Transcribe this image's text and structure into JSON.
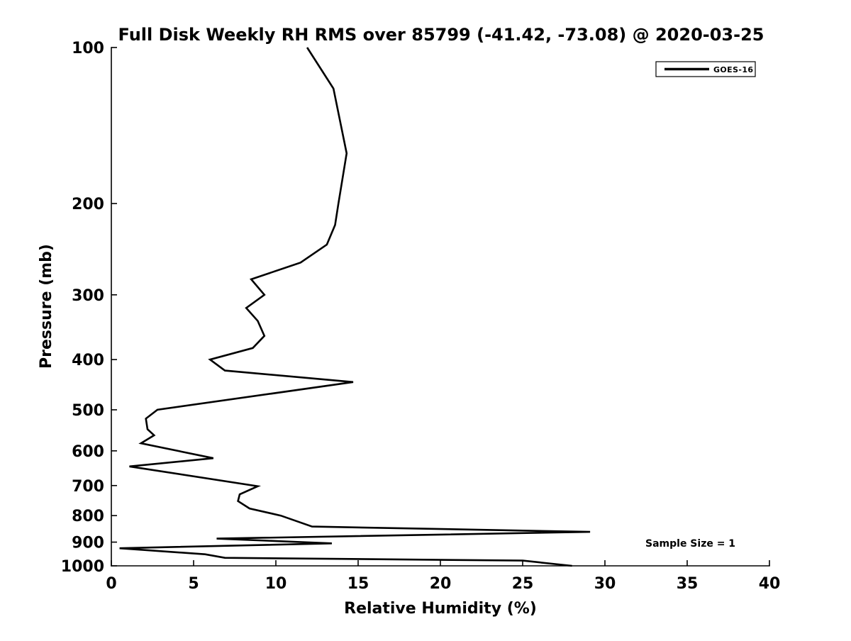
{
  "chart_data": {
    "type": "line",
    "title": "Full Disk Weekly RH RMS over 85799 (-41.42, -73.08) @ 2020-03-25",
    "xlabel": "Relative Humidity (%)",
    "ylabel": "Pressure (mb)",
    "xlim": [
      0,
      40
    ],
    "ylim": [
      100,
      1000
    ],
    "y_scale": "log",
    "y_inverted": true,
    "grid": false,
    "x_ticks": [
      0,
      5,
      10,
      15,
      20,
      25,
      30,
      35,
      40
    ],
    "y_ticks": [
      100,
      200,
      300,
      400,
      500,
      600,
      700,
      800,
      900,
      1000
    ],
    "legend": {
      "position": "upper right",
      "entries": [
        {
          "label": "GOES-16",
          "color": "#000000"
        }
      ]
    },
    "annotation": {
      "text": "Sample Size = 1"
    },
    "series": [
      {
        "name": "GOES-16",
        "color": "#000000",
        "points_rh_pressure": [
          [
            11.9,
            100
          ],
          [
            13.5,
            120
          ],
          [
            14.3,
            160
          ],
          [
            13.8,
            200
          ],
          [
            13.6,
            220
          ],
          [
            13.1,
            240
          ],
          [
            11.5,
            260
          ],
          [
            8.5,
            280
          ],
          [
            9.3,
            300
          ],
          [
            8.2,
            318
          ],
          [
            8.9,
            337
          ],
          [
            9.3,
            360
          ],
          [
            8.6,
            380
          ],
          [
            6.0,
            400
          ],
          [
            6.9,
            420
          ],
          [
            14.7,
            442
          ],
          [
            2.8,
            500
          ],
          [
            2.1,
            520
          ],
          [
            2.2,
            545
          ],
          [
            2.6,
            560
          ],
          [
            1.8,
            580
          ],
          [
            6.2,
            620
          ],
          [
            1.1,
            643
          ],
          [
            8.9,
            702
          ],
          [
            7.8,
            728
          ],
          [
            7.7,
            750
          ],
          [
            8.4,
            775
          ],
          [
            10.3,
            800
          ],
          [
            12.2,
            840
          ],
          [
            29.1,
            860
          ],
          [
            6.4,
            886
          ],
          [
            13.4,
            905
          ],
          [
            0.5,
            925
          ],
          [
            5.7,
            950
          ],
          [
            6.9,
            965
          ],
          [
            25.0,
            977
          ],
          [
            28.0,
            1000
          ]
        ]
      }
    ],
    "colors": {
      "background": "#ffffff",
      "axis": "#000000",
      "line": "#000000",
      "text": "#000000"
    },
    "sample_size": 1
  }
}
